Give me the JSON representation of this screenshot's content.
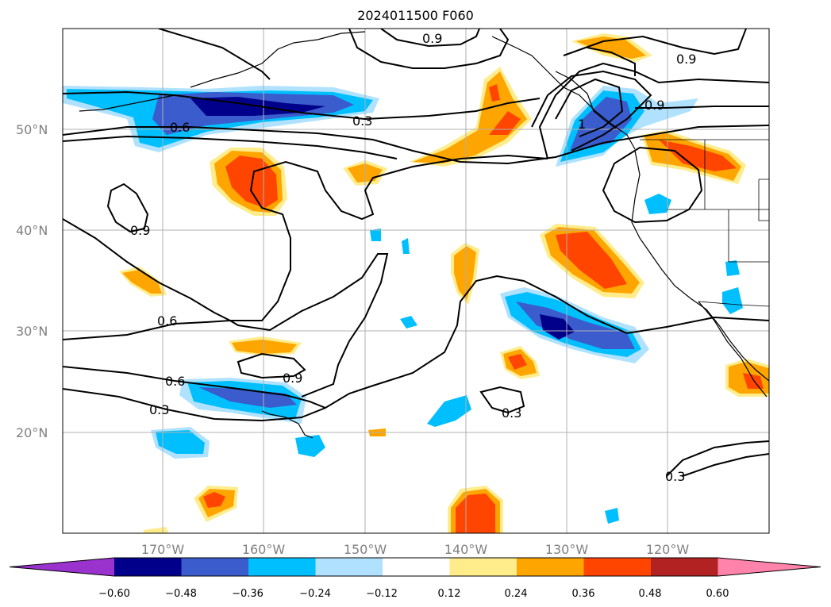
{
  "title": "2024011500 F060",
  "map": {
    "lat_labels": [
      "50°N",
      "40°N",
      "30°N",
      "20°N"
    ],
    "lon_labels": [
      "170°W",
      "160°W",
      "150°W",
      "140°W",
      "130°W",
      "120°W"
    ],
    "contour_labels": [
      "0.9",
      "0.9",
      "0.9",
      "0.3",
      "0.6",
      "0.9",
      "0.6",
      "0.9",
      "0.6",
      "0.3",
      "0.3",
      "0.3",
      "1"
    ]
  },
  "colorbar": {
    "ticks": [
      "−0.60",
      "−0.48",
      "−0.36",
      "−0.24",
      "−0.12",
      "0.12",
      "0.24",
      "0.36",
      "0.48",
      "0.60"
    ],
    "colors": [
      "#9a32cd",
      "#00008b",
      "#3a5ccc",
      "#00bfff",
      "#b0e2ff",
      "#ffffff",
      "#ffec8b",
      "#ffa500",
      "#ff4500",
      "#b22222",
      "#ff83aa"
    ]
  }
}
